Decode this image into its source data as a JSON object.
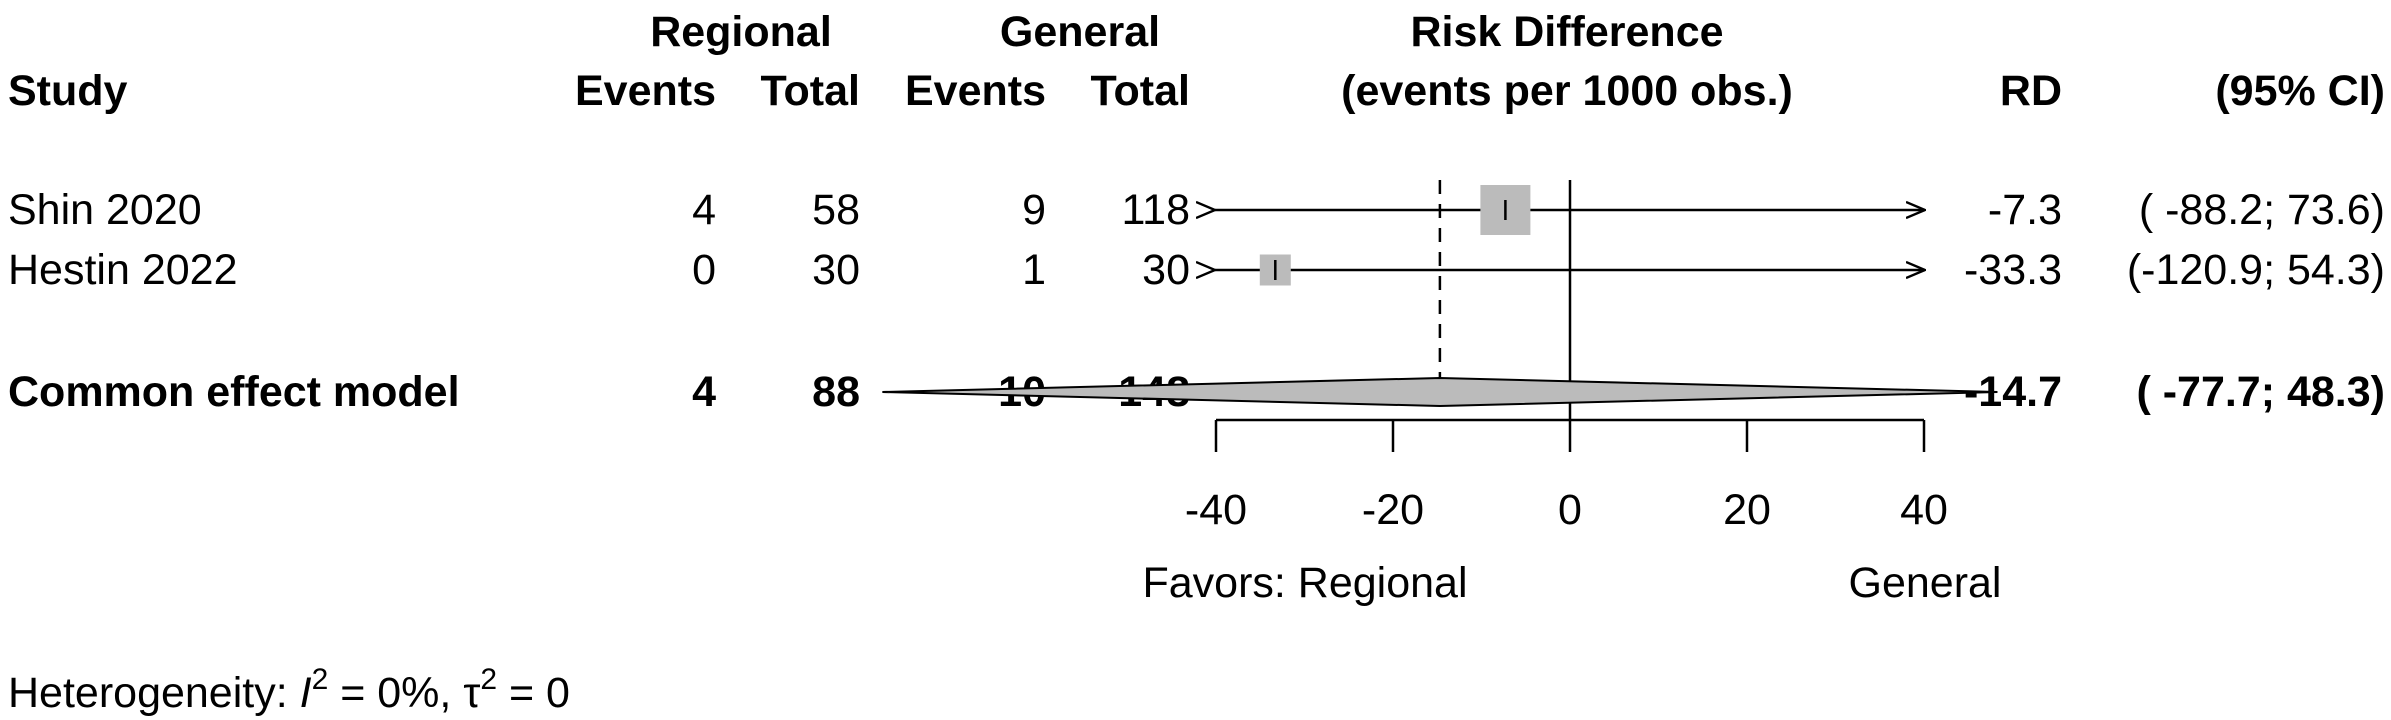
{
  "chart_data": {
    "type": "forest",
    "headers": {
      "study": "Study",
      "group_regional": "Regional",
      "group_general": "General",
      "events": "Events",
      "total": "Total",
      "effect_title": "Risk Difference",
      "effect_subtitle": "(events per 1000 obs.)",
      "rd": "RD",
      "ci": "(95% CI)"
    },
    "studies": [
      {
        "name": "Shin 2020",
        "regional_events": "4",
        "regional_total": "58",
        "general_events": "9",
        "general_total": "118",
        "rd": -7.3,
        "ci_low": -88.2,
        "ci_high": 73.6,
        "rd_text": "-7.3",
        "ci_text": "( -88.2; 73.6)",
        "weight_box": 1.0
      },
      {
        "name": "Hestin 2022",
        "regional_events": "0",
        "regional_total": "30",
        "general_events": "1",
        "general_total": "30",
        "rd": -33.3,
        "ci_low": -120.9,
        "ci_high": 54.3,
        "rd_text": "-33.3",
        "ci_text": "(-120.9; 54.3)",
        "weight_box": 0.62
      }
    ],
    "pooled": {
      "name": "Common effect model",
      "regional_events": "4",
      "regional_total": "88",
      "general_events": "10",
      "general_total": "148",
      "rd": -14.7,
      "ci_low": -77.7,
      "ci_high": 48.3,
      "rd_text": "-14.7",
      "ci_text": "( -77.7; 48.3)"
    },
    "x_axis": {
      "range": [
        -40,
        40
      ],
      "ticks": [
        "-40",
        "-20",
        "0",
        "20",
        "40"
      ],
      "null_value": 0
    },
    "favors_left": "Favors: Regional",
    "favors_right": "General",
    "heterogeneity": {
      "prefix": "Heterogeneity: ",
      "i2_symbol": "I",
      "i2_text": " = 0%, ",
      "tau_symbol": "τ",
      "tau_text": " = 0",
      "superscript": "2"
    },
    "colors": {
      "box": "#bbbbbb",
      "diamond": "#bbbbbb",
      "line": "#000000"
    }
  }
}
